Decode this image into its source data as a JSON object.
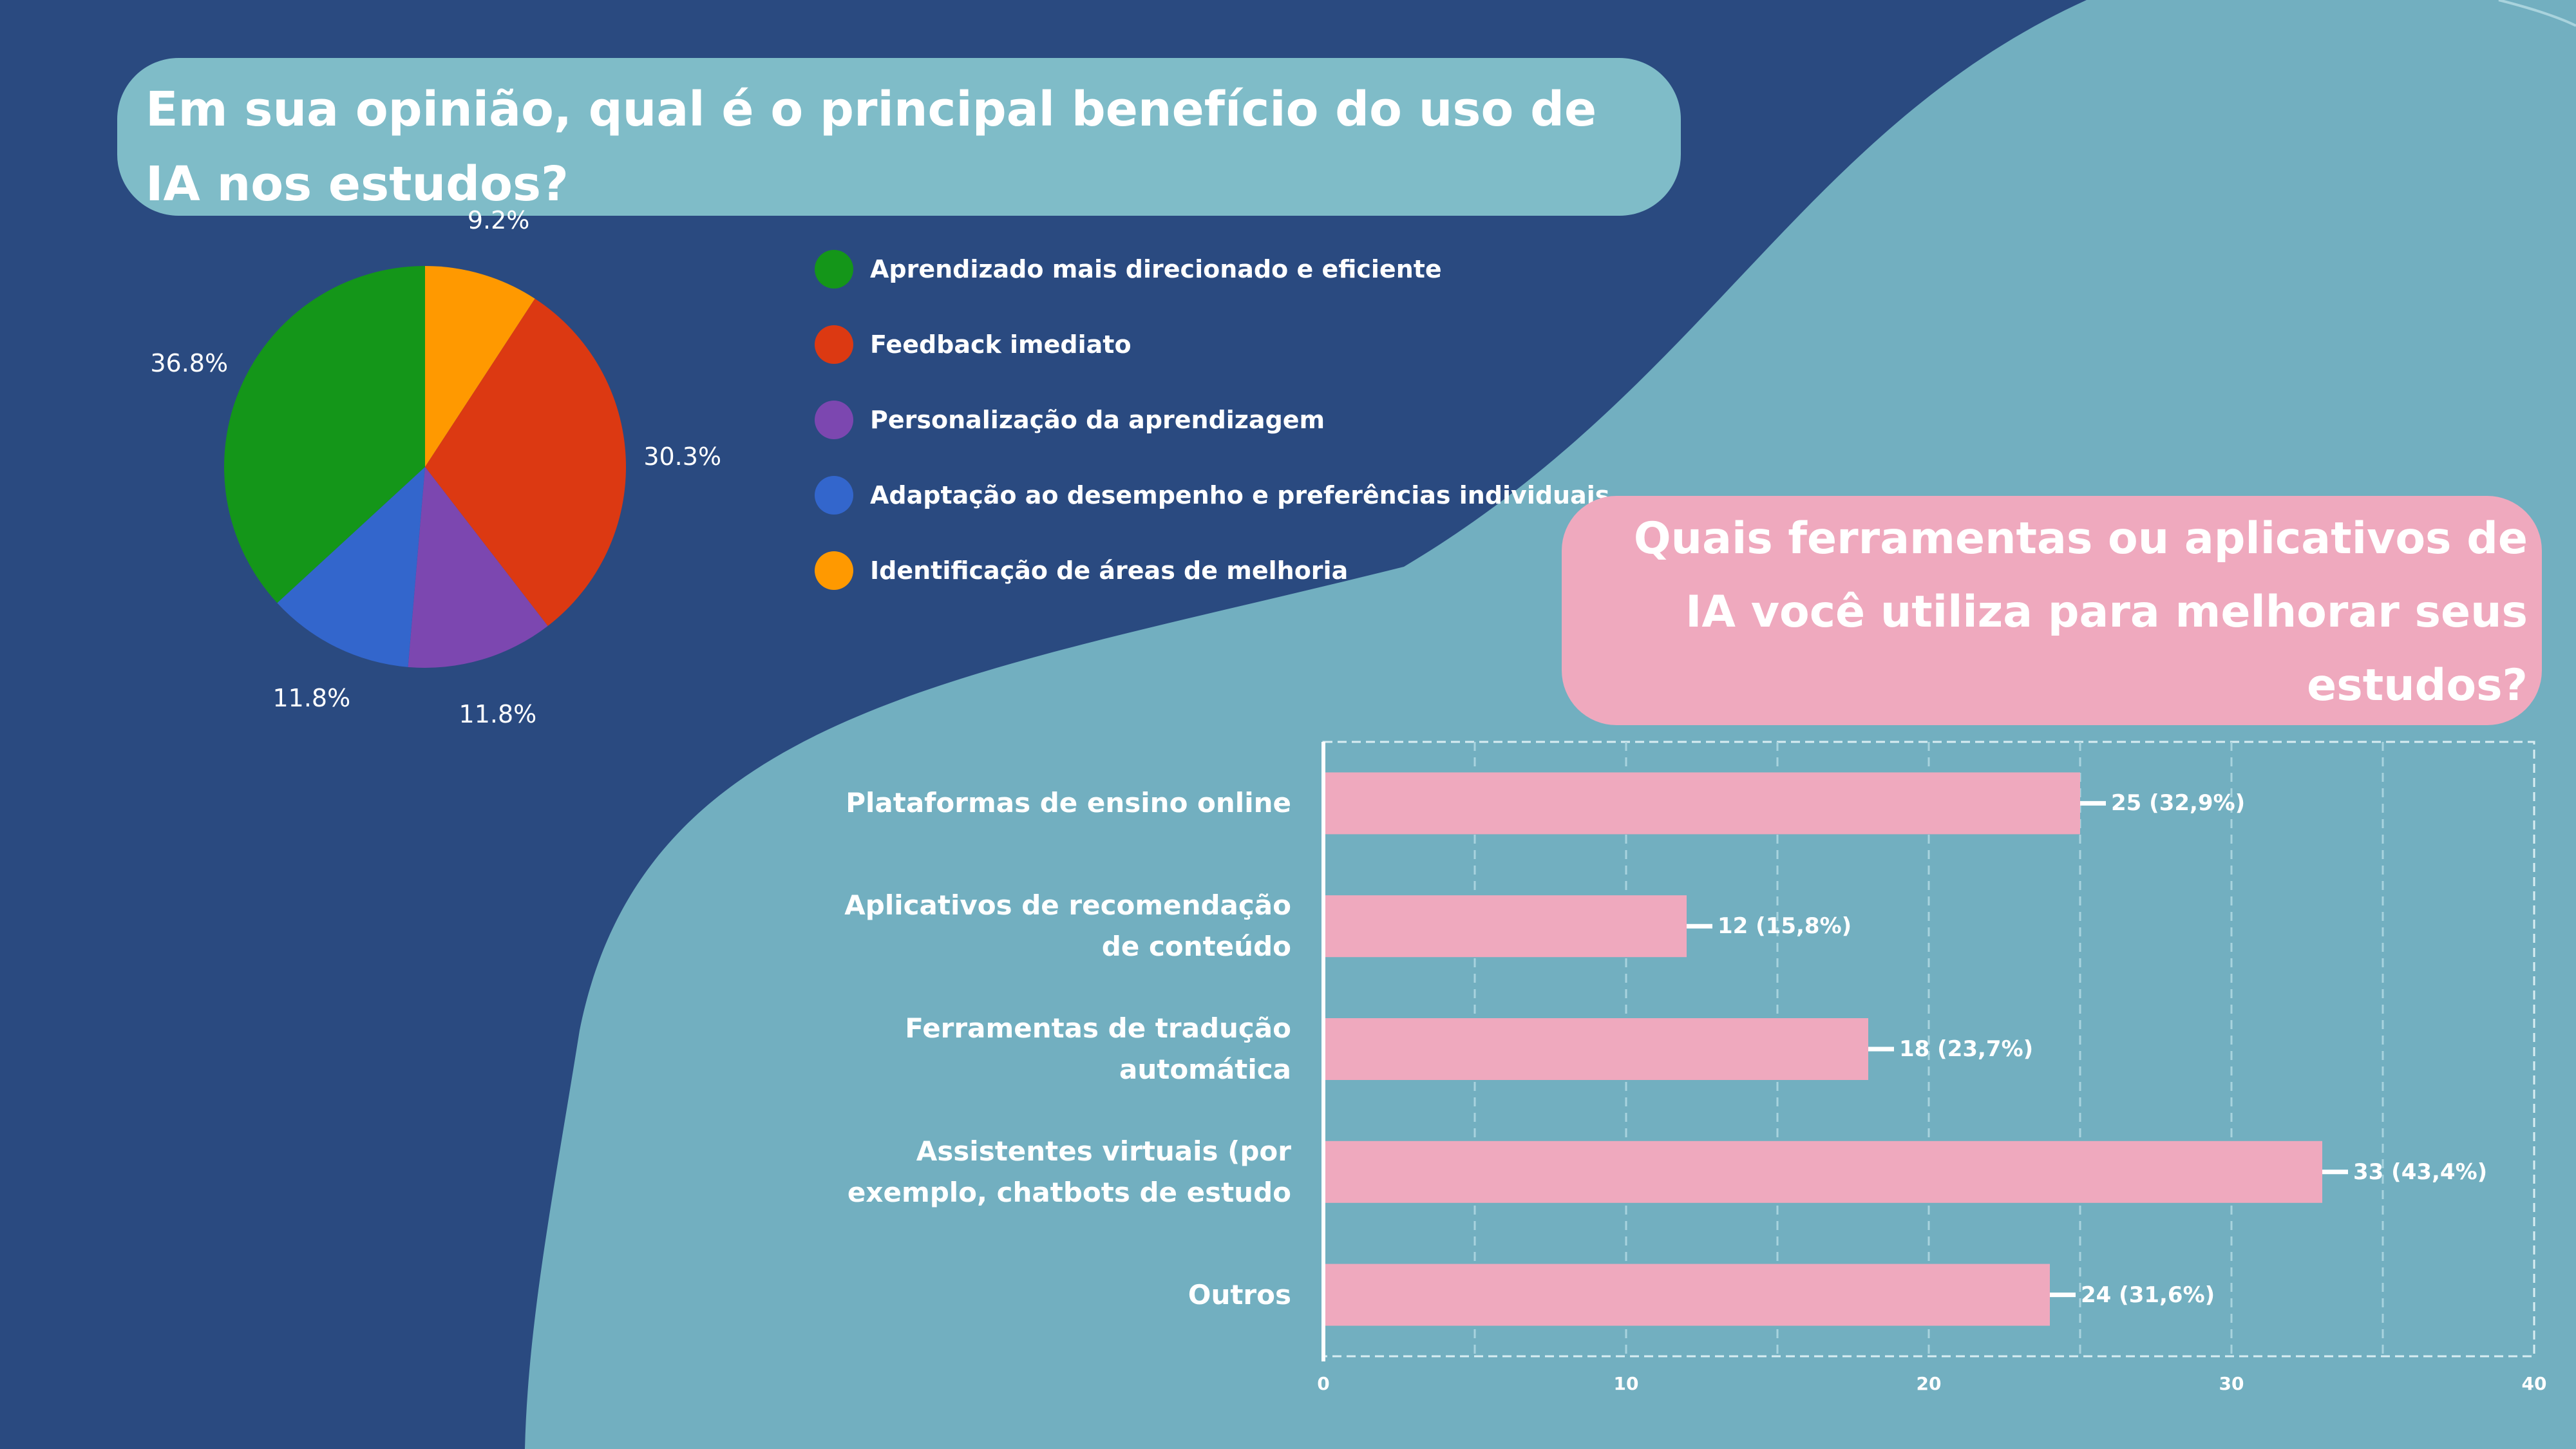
{
  "colors": {
    "background_dark": "#2a4a80",
    "background_light": "#72afc0",
    "pie_title_bg": "#7fbcc8",
    "bar_title_bg": "#efa9be",
    "bar_fill": "#efa9be",
    "text": "#ffffff"
  },
  "chart_data": [
    {
      "type": "pie",
      "title": "Em sua opinião, qual é o principal benefício do uso de IA nos estudos?",
      "legend_position": "right",
      "slices": [
        {
          "label": "Aprendizado mais direcionado e eficiente",
          "value": 36.8,
          "value_label": "36.8%",
          "color": "#149619"
        },
        {
          "label": "Feedback imediato",
          "value": 30.3,
          "value_label": "30.3%",
          "color": "#dc3912"
        },
        {
          "label": "Personalização da aprendizagem",
          "value": 11.8,
          "value_label": "11.8%",
          "color": "#7c47b0"
        },
        {
          "label": "Adaptação ao desempenho e preferências individuais",
          "value": 11.8,
          "value_label": "11.8%",
          "color": "#3366cc"
        },
        {
          "label": "Identificação de áreas de melhoria",
          "value": 9.2,
          "value_label": "9.2%",
          "color": "#ff9900"
        }
      ]
    },
    {
      "type": "bar",
      "orientation": "horizontal",
      "title": "Quais ferramentas ou aplicativos de IA você utiliza para melhorar seus estudos?",
      "categories": [
        "Plataformas de ensino online",
        "Aplicativos de recomendação de conteúdo",
        "Ferramentas de tradução automática",
        "Assistentes virtuais (por exemplo, chatbots de estudo",
        "Outros"
      ],
      "category_lines": [
        [
          "Plataformas de ensino online"
        ],
        [
          "Aplicativos de recomendação",
          "de conteúdo"
        ],
        [
          "Ferramentas de tradução",
          "automática"
        ],
        [
          "Assistentes virtuais (por",
          "exemplo, chatbots de estudo"
        ],
        [
          "Outros"
        ]
      ],
      "values": [
        25,
        12,
        18,
        33,
        24
      ],
      "value_labels": [
        "25 (32,9%)",
        "12 (15,8%)",
        "18 (23,7%)",
        "33 (43,4%)",
        "24 (31,6%)"
      ],
      "xlim": [
        0,
        40
      ],
      "ticks": [
        0,
        10,
        20,
        30,
        40
      ],
      "grid": true
    }
  ]
}
